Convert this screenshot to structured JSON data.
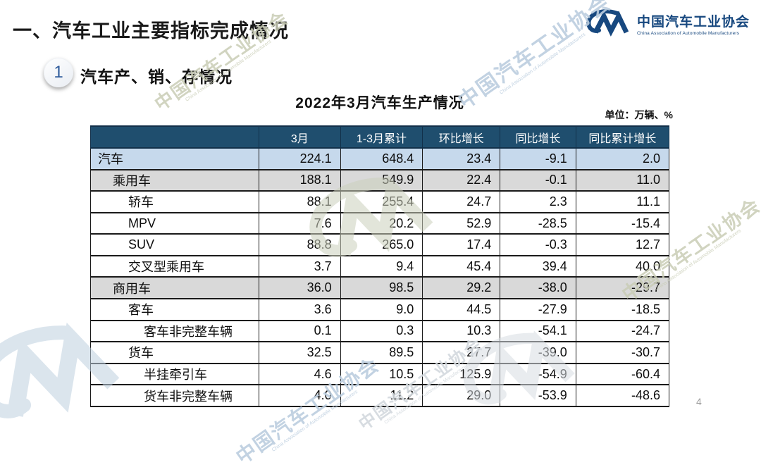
{
  "page": {
    "title": "一、汽车工业主要指标完成情况",
    "page_number": "4"
  },
  "logo": {
    "org_cn": "中国汽车工业协会",
    "org_en": "China Association of Automobile Manufacturers",
    "brand_color": "#17487f",
    "icon": "cm-swoosh-logo"
  },
  "section": {
    "index": "1",
    "title": "汽车产、销、存情况"
  },
  "table": {
    "title": "2022年3月汽车生产情况",
    "unit_note": "单位：万辆、%",
    "header_bg_color": "#1f4e6e",
    "highlight_row_color": "#c6d9ec",
    "subtotal_row_color": "#d9d9d9",
    "columns": [
      "",
      "3月",
      "1-3月累计",
      "环比增长",
      "同比增长",
      "同比累计增长"
    ],
    "rows": [
      {
        "label": "汽车",
        "indent": 0,
        "style": "blue",
        "values": [
          "224.1",
          "648.4",
          "23.4",
          "-9.1",
          "2.0"
        ]
      },
      {
        "label": "乘用车",
        "indent": 1,
        "style": "gray",
        "values": [
          "188.1",
          "549.9",
          "22.4",
          "-0.1",
          "11.0"
        ]
      },
      {
        "label": "轿车",
        "indent": 2,
        "style": "white",
        "values": [
          "88.1",
          "255.4",
          "24.7",
          "2.3",
          "11.1"
        ]
      },
      {
        "label": "MPV",
        "indent": 2,
        "style": "white",
        "values": [
          "7.6",
          "20.2",
          "52.9",
          "-28.5",
          "-15.4"
        ]
      },
      {
        "label": "SUV",
        "indent": 2,
        "style": "white",
        "values": [
          "88.8",
          "265.0",
          "17.4",
          "-0.3",
          "12.7"
        ]
      },
      {
        "label": "交叉型乘用车",
        "indent": 2,
        "style": "white",
        "values": [
          "3.7",
          "9.4",
          "45.4",
          "39.4",
          "40.0"
        ]
      },
      {
        "label": "商用车",
        "indent": 1,
        "style": "gray",
        "values": [
          "36.0",
          "98.5",
          "29.2",
          "-38.0",
          "-29.7"
        ]
      },
      {
        "label": "客车",
        "indent": 2,
        "style": "white",
        "values": [
          "3.6",
          "9.0",
          "44.5",
          "-27.9",
          "-18.5"
        ]
      },
      {
        "label": "客车非完整车辆",
        "indent": 3,
        "style": "white",
        "values": [
          "0.1",
          "0.3",
          "10.3",
          "-54.1",
          "-24.7"
        ]
      },
      {
        "label": "货车",
        "indent": 2,
        "style": "white",
        "values": [
          "32.5",
          "89.5",
          "27.7",
          "-39.0",
          "-30.7"
        ]
      },
      {
        "label": "半挂牵引车",
        "indent": 3,
        "style": "white",
        "values": [
          "4.6",
          "10.5",
          "125.9",
          "-54.9",
          "-60.4"
        ]
      },
      {
        "label": "货车非完整车辆",
        "indent": 3,
        "style": "white",
        "values": [
          "4.0",
          "11.2",
          "29.0",
          "-53.9",
          "-48.6"
        ]
      }
    ]
  },
  "watermark": {
    "text": "中国汽车工业协会",
    "subtext": "China Association of Automobile Manufacturers"
  }
}
